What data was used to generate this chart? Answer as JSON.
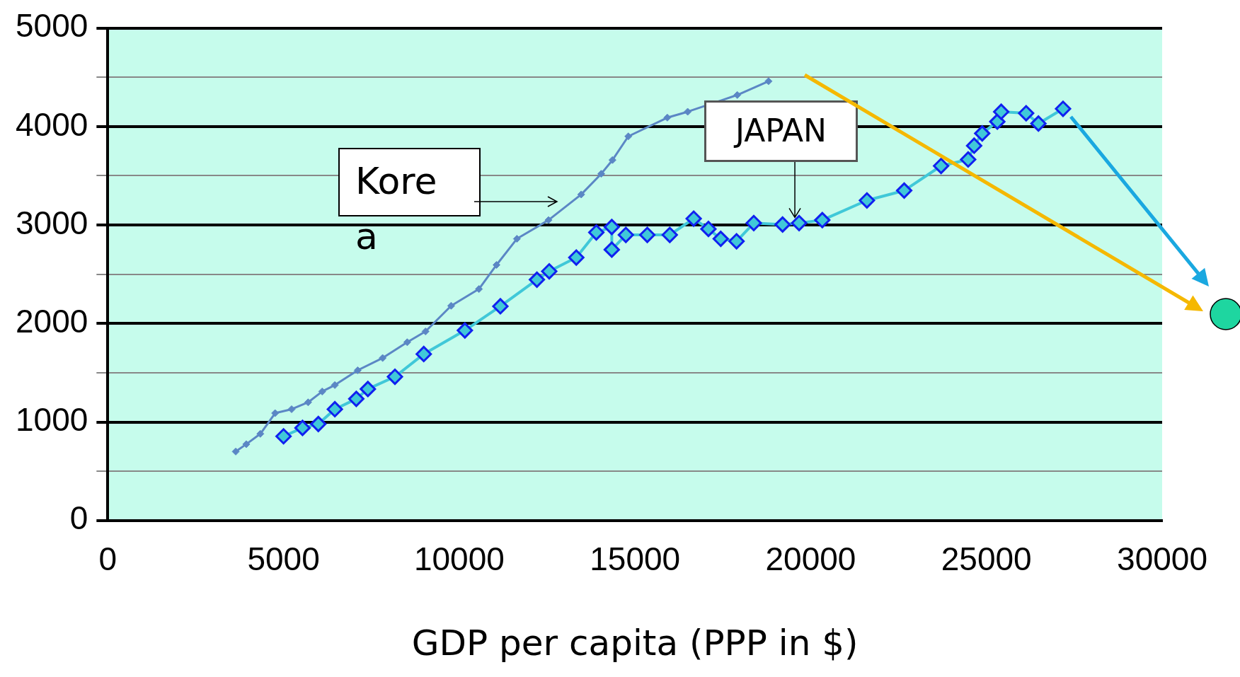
{
  "chart_data": {
    "type": "line",
    "xlabel": "GDP per capita (PPP in $)",
    "xlim": [
      0,
      30000
    ],
    "xticks": [
      0,
      5000,
      10000,
      15000,
      20000,
      25000,
      30000
    ],
    "ylim": [
      0,
      5000
    ],
    "yticks": [
      0,
      {
        "value": 500,
        "label": null
      },
      1000,
      {
        "value": 1500,
        "label": null
      },
      2000,
      {
        "value": 2500,
        "label": null
      },
      3000,
      {
        "value": 3500,
        "label": null
      },
      4000,
      {
        "value": 4500,
        "label": null
      },
      5000
    ],
    "annotations": [
      "Korea",
      {
        "text": "JAPAN",
        "x": 19670,
        "y": 3020
      }
    ],
    "grid": "y",
    "legend": false,
    "marker": "diamond",
    "line_style": "solid",
    "series": [
      {
        "color": "#5b87c5",
        "x": [
          3640,
          3940,
          4340,
          4760,
          5230,
          5700,
          6100,
          6460,
          7110,
          7820,
          8520,
          9040,
          9770,
          10560,
          11060,
          11640,
          12540,
          13470,
          14040,
          14360,
          14810,
          15920,
          16500,
          17910,
          18800
        ],
        "values": [
          700,
          775,
          880,
          1090,
          1130,
          1200,
          1310,
          1375,
          1525,
          1650,
          1810,
          1920,
          2180,
          2350,
          2595,
          2860,
          3050,
          3310,
          3520,
          3660,
          3900,
          4090,
          4150,
          4320,
          4460
        ]
      },
      {
        "color": "#40c8d8",
        "x": [
          5000,
          5540,
          5990,
          6460,
          7070,
          7400,
          8170,
          8990,
          10160,
          11170,
          12210,
          12560,
          13330,
          13900,
          14340,
          14340,
          14740,
          15350,
          15990,
          16670,
          17090,
          17440,
          17890,
          18380,
          19200,
          19670,
          20330,
          21600,
          22660,
          23710,
          24480,
          24650,
          24880,
          25310,
          25420,
          26130,
          26480,
          27180
        ],
        "values": [
          855,
          940,
          980,
          1130,
          1235,
          1335,
          1460,
          1690,
          1930,
          2175,
          2445,
          2530,
          2670,
          2925,
          2980,
          2750,
          2900,
          2900,
          2900,
          3065,
          2960,
          2860,
          2835,
          3020,
          3005,
          3020,
          3050,
          3250,
          3350,
          3600,
          3665,
          3805,
          3930,
          4050,
          4150,
          4135,
          4030,
          4180
        ]
      }
    ]
  }
}
